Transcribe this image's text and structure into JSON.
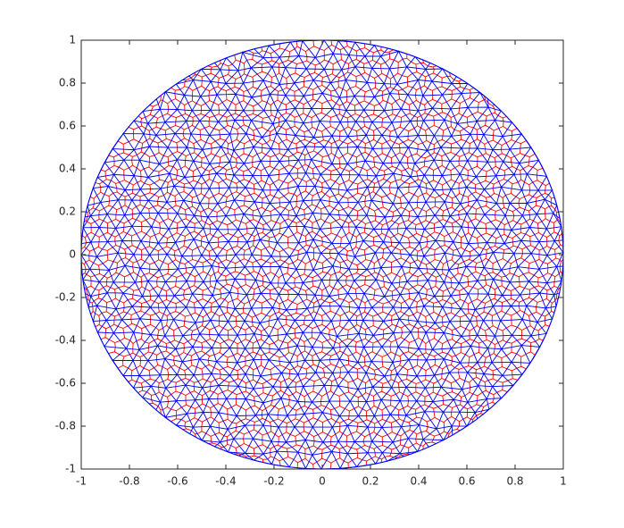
{
  "chart_data": {
    "type": "mesh",
    "xlim": [
      -1,
      1
    ],
    "ylim": [
      -1,
      1
    ],
    "xticks": [
      -1,
      -0.8,
      -0.6,
      -0.4,
      -0.2,
      0,
      0.2,
      0.4,
      0.6,
      0.8,
      1
    ],
    "yticks": [
      -1,
      -0.8,
      -0.6,
      -0.4,
      -0.2,
      0,
      0.2,
      0.4,
      0.6,
      0.8,
      1
    ],
    "mesh_color": "#0000ff",
    "dual_color": "#ff0000"
  }
}
